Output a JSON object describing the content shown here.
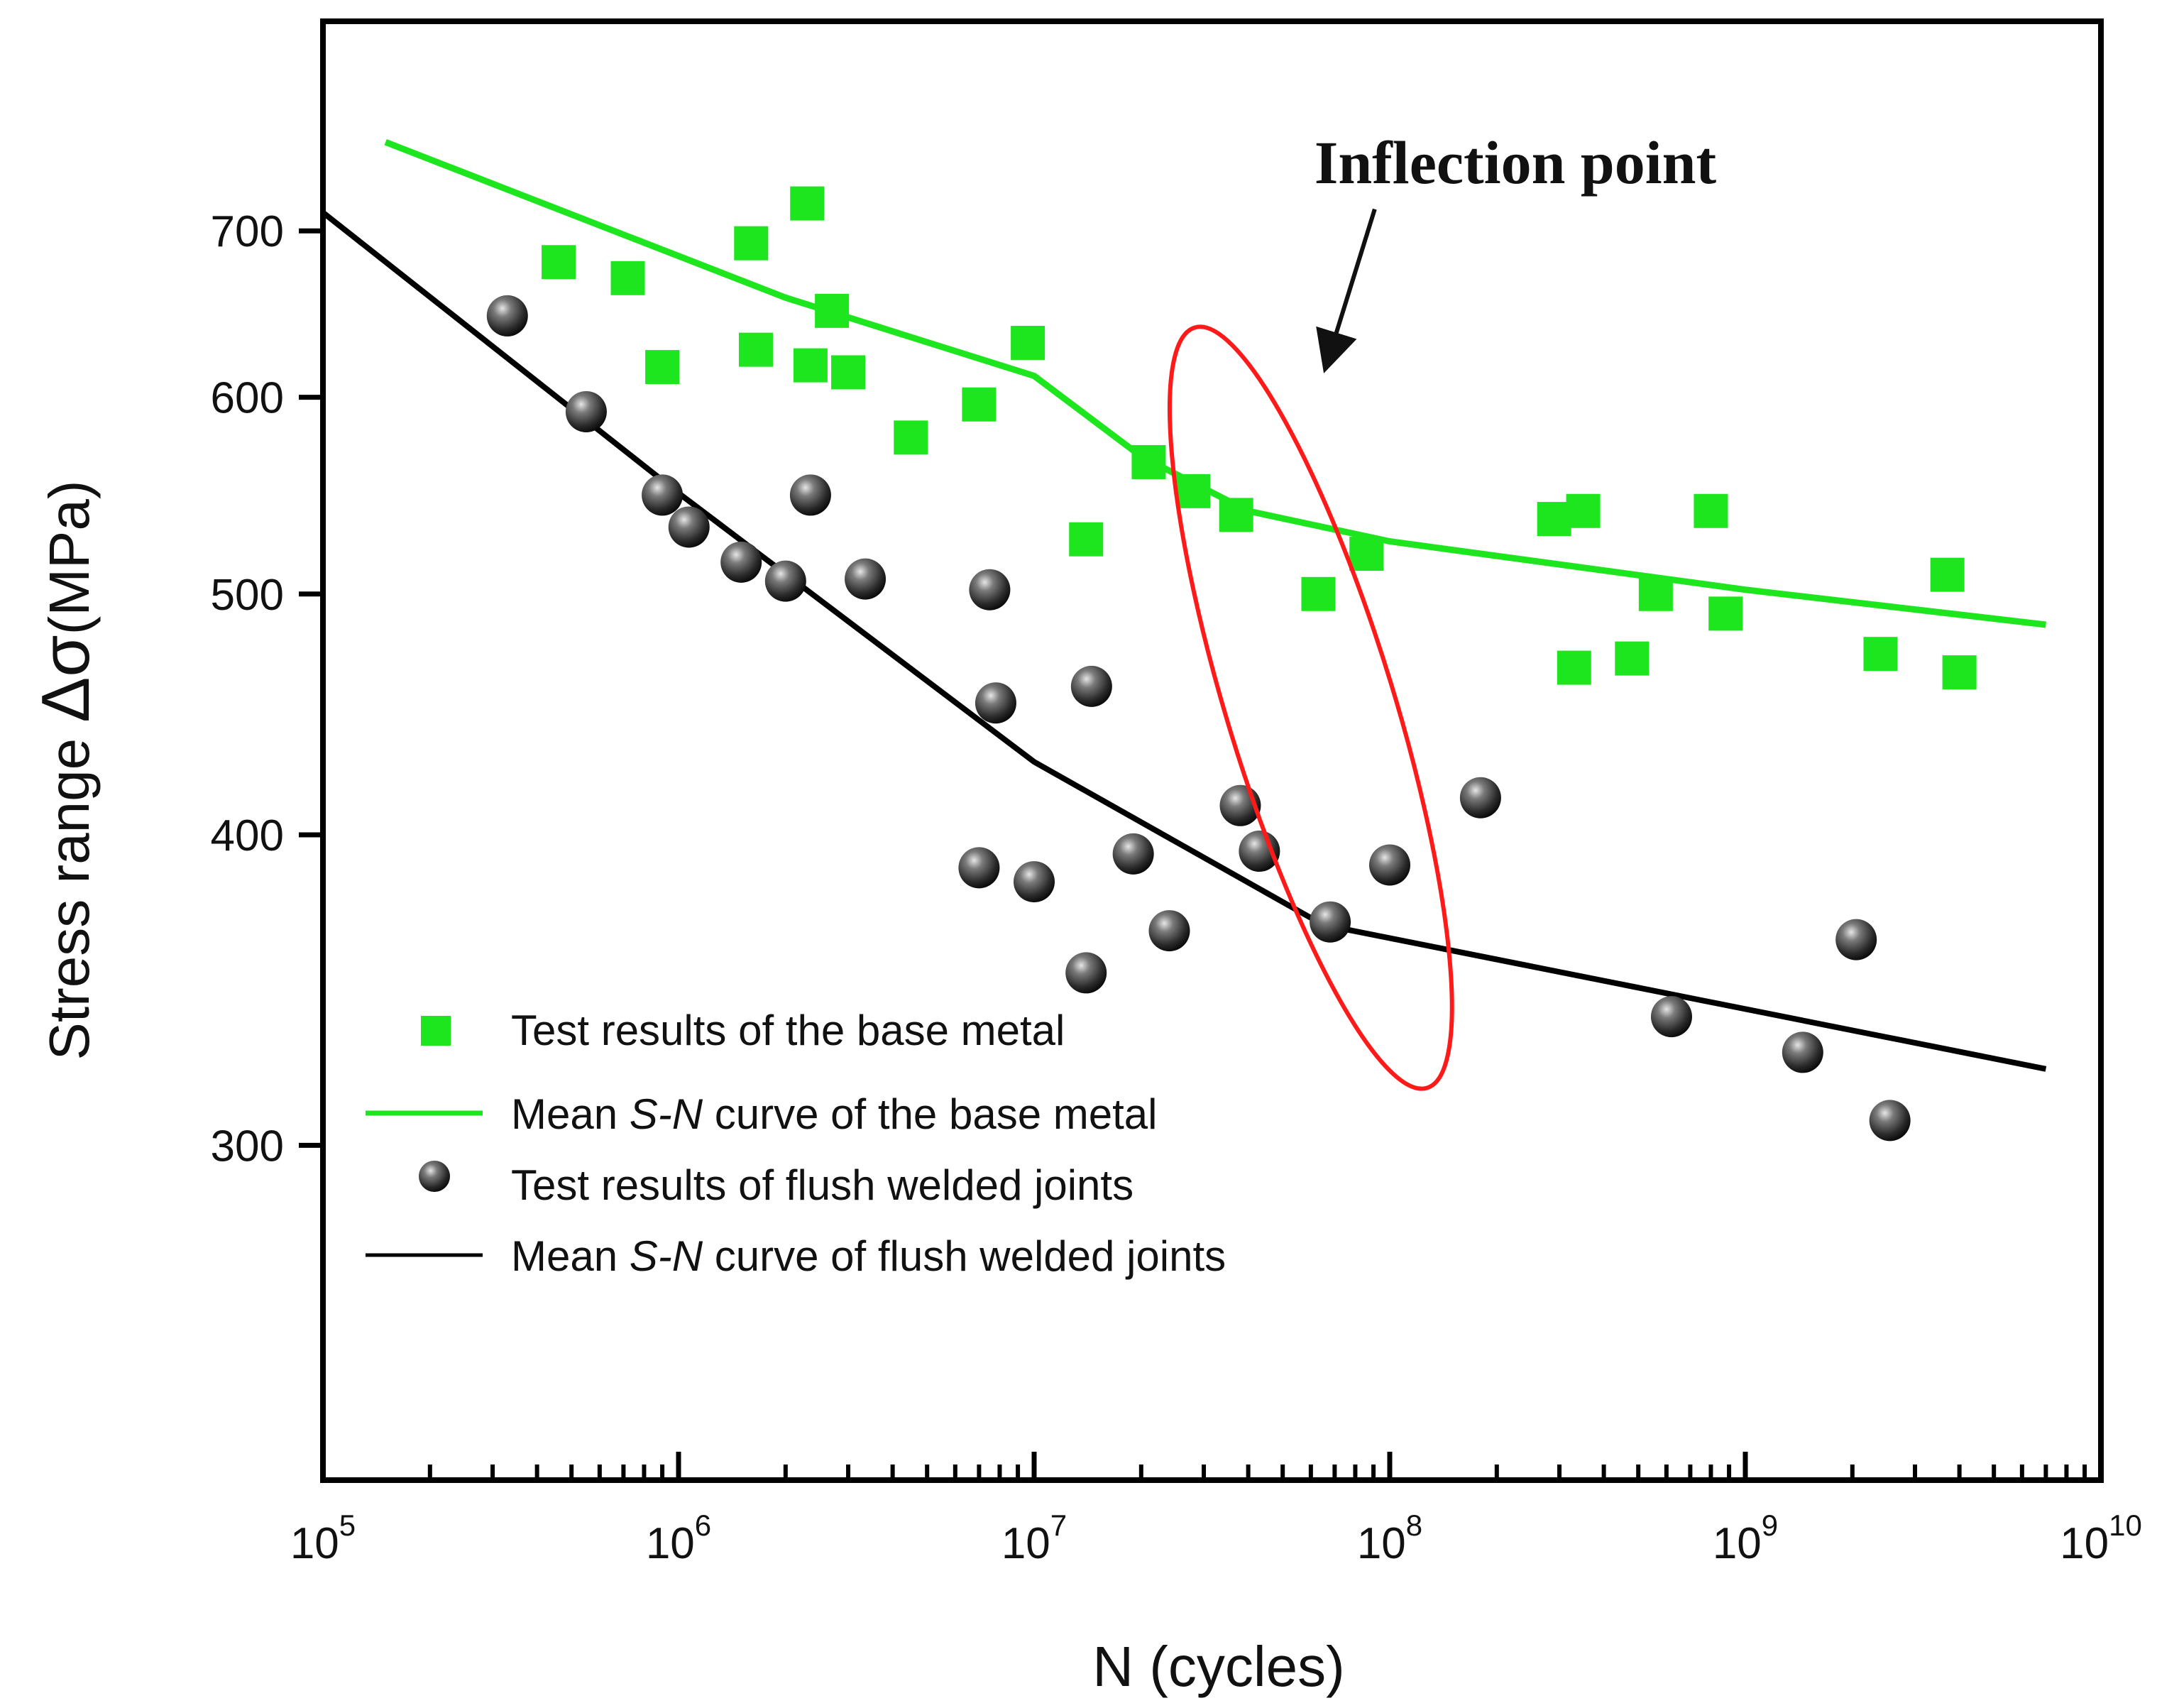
{
  "chart_data": {
    "type": "scatter",
    "x_scale": "log",
    "y_scale": "log",
    "xlim": [
      100000,
      10000000000
    ],
    "ylim": [
      220,
      850
    ],
    "xlabel": "N (cycles)",
    "ylabel_prefix": "Stress range ",
    "ylabel_symbol": "Δσ",
    "ylabel_unit": "(MPa)",
    "x_ticks": [
      {
        "value": 100000,
        "base": "10",
        "exp": "5"
      },
      {
        "value": 1000000,
        "base": "10",
        "exp": "6"
      },
      {
        "value": 10000000,
        "base": "10",
        "exp": "7"
      },
      {
        "value": 100000000,
        "base": "10",
        "exp": "8"
      },
      {
        "value": 1000000000,
        "base": "10",
        "exp": "9"
      },
      {
        "value": 10000000000,
        "base": "10",
        "exp": "10"
      }
    ],
    "y_ticks": [
      {
        "value": 300,
        "label": "300"
      },
      {
        "value": 400,
        "label": "400"
      },
      {
        "value": 500,
        "label": "500"
      },
      {
        "value": 600,
        "label": "600"
      },
      {
        "value": 700,
        "label": "700"
      }
    ],
    "annotation": {
      "text": "Inflection point",
      "ellipse_center": [
        60000000,
        450
      ],
      "arrow_from": [
        60000000,
        660
      ],
      "arrow_to": [
        40000000,
        610
      ]
    },
    "series": [
      {
        "name": "Test results of the base metal",
        "kind": "scatter",
        "marker": "square",
        "color": "#1ee61e",
        "points": [
          [
            460000,
            680
          ],
          [
            720000,
            670
          ],
          [
            900000,
            617
          ],
          [
            1600000,
            692
          ],
          [
            1650000,
            627
          ],
          [
            2300000,
            718
          ],
          [
            2350000,
            618
          ],
          [
            2700000,
            650
          ],
          [
            3000000,
            614
          ],
          [
            4500000,
            578
          ],
          [
            7000000,
            596
          ],
          [
            9600000,
            631
          ],
          [
            14000000,
            526
          ],
          [
            21000000,
            565
          ],
          [
            28000000,
            550
          ],
          [
            37000000,
            538
          ],
          [
            63000000,
            500
          ],
          [
            86000000,
            519
          ],
          [
            290000000,
            536
          ],
          [
            330000000,
            467
          ],
          [
            350000000,
            540
          ],
          [
            480000000,
            471
          ],
          [
            560000000,
            500
          ],
          [
            800000000,
            540
          ],
          [
            880000000,
            491
          ],
          [
            2400000000,
            473
          ],
          [
            3700000000,
            509
          ],
          [
            4000000000,
            465
          ]
        ]
      },
      {
        "name": "Mean S-N curve of the base metal",
        "legend_prefix": "Mean ",
        "legend_italic": "S-N",
        "legend_suffix": " curve of the base metal",
        "kind": "line",
        "color": "#1ee61e",
        "points": [
          [
            150000,
            760
          ],
          [
            2000000,
            658
          ],
          [
            10000000,
            612
          ],
          [
            20000000,
            568
          ],
          [
            40000000,
            540
          ],
          [
            100000000,
            525
          ],
          [
            1000000000,
            502
          ],
          [
            7000000000,
            486
          ]
        ]
      },
      {
        "name": "Test results of flush welded joints",
        "kind": "scatter",
        "marker": "sphere",
        "color": "#2c2c2c",
        "points": [
          [
            330000,
            647
          ],
          [
            550000,
            592
          ],
          [
            900000,
            548
          ],
          [
            1070000,
            532
          ],
          [
            1500000,
            515
          ],
          [
            2000000,
            506
          ],
          [
            2350000,
            548
          ],
          [
            3350000,
            507
          ],
          [
            7500000,
            502
          ],
          [
            7800000,
            452
          ],
          [
            14500000,
            459
          ],
          [
            7000000,
            388
          ],
          [
            10000000,
            383
          ],
          [
            14000000,
            352
          ],
          [
            19000000,
            393
          ],
          [
            24000000,
            366
          ],
          [
            38000000,
            411
          ],
          [
            43000000,
            394
          ],
          [
            68000000,
            369
          ],
          [
            100000000,
            389
          ],
          [
            180000000,
            414
          ],
          [
            620000000,
            338
          ],
          [
            1450000000,
            327
          ],
          [
            2050000000,
            363
          ],
          [
            2550000000,
            307
          ]
        ]
      },
      {
        "name": "Mean S-N curve of flush welded joints",
        "legend_prefix": "Mean ",
        "legend_italic": "S-N",
        "legend_suffix": " curve of flush welded joints",
        "kind": "line",
        "color": "#000000",
        "points": [
          [
            100000,
            712
          ],
          [
            1000000,
            549
          ],
          [
            10000000,
            428
          ],
          [
            65000000,
            368
          ],
          [
            7000000000,
            322
          ]
        ]
      }
    ]
  }
}
